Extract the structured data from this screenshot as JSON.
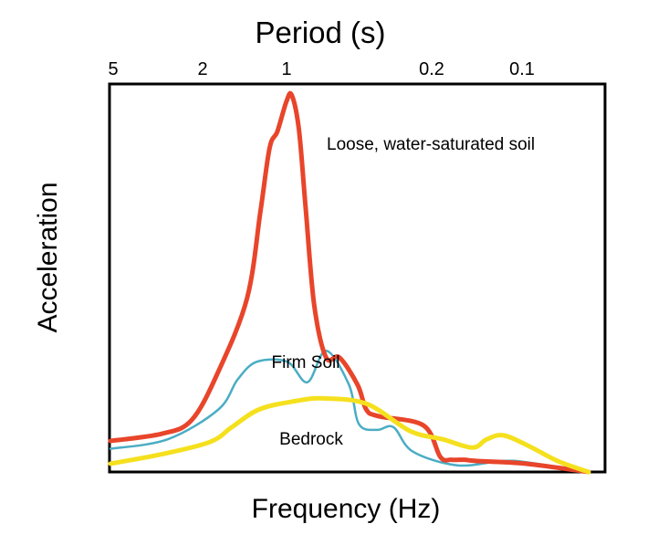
{
  "chart_data": {
    "type": "line",
    "title": "",
    "xlabel": "Frequency (Hz)",
    "ylabel": "Acceleration",
    "top_axis": {
      "label": "Period (s)",
      "ticks": [
        "5",
        "2",
        "1",
        "0.2",
        "0.1"
      ]
    },
    "grid": false,
    "series": [
      {
        "name": "Loose, water-saturated soil",
        "color": "#e8452b",
        "points": [
          [
            0.0,
            0.079
          ],
          [
            0.107,
            0.097
          ],
          [
            0.17,
            0.132
          ],
          [
            0.226,
            0.256
          ],
          [
            0.286,
            0.443
          ],
          [
            0.314,
            0.664
          ],
          [
            0.333,
            0.824
          ],
          [
            0.349,
            0.865
          ],
          [
            0.368,
            0.941
          ],
          [
            0.379,
            0.958
          ],
          [
            0.394,
            0.872
          ],
          [
            0.408,
            0.675
          ],
          [
            0.426,
            0.426
          ],
          [
            0.451,
            0.291
          ],
          [
            0.479,
            0.291
          ],
          [
            0.517,
            0.221
          ],
          [
            0.535,
            0.159
          ],
          [
            0.56,
            0.142
          ],
          [
            0.655,
            0.118
          ],
          [
            0.69,
            0.038
          ],
          [
            0.713,
            0.031
          ],
          [
            0.741,
            0.031
          ],
          [
            0.764,
            0.028
          ],
          [
            0.868,
            0.021
          ],
          [
            1.0,
            0.0
          ]
        ]
      },
      {
        "name": "Firm Soil",
        "color": "#4aadc4",
        "points": [
          [
            0.0,
            0.059
          ],
          [
            0.12,
            0.083
          ],
          [
            0.226,
            0.159
          ],
          [
            0.266,
            0.235
          ],
          [
            0.306,
            0.28
          ],
          [
            0.37,
            0.28
          ],
          [
            0.412,
            0.228
          ],
          [
            0.451,
            0.308
          ],
          [
            0.499,
            0.221
          ],
          [
            0.52,
            0.121
          ],
          [
            0.558,
            0.107
          ],
          [
            0.592,
            0.114
          ],
          [
            0.632,
            0.052
          ],
          [
            0.725,
            0.017
          ],
          [
            0.82,
            0.028
          ],
          [
            0.875,
            0.024
          ],
          [
            1.0,
            0.0
          ]
        ]
      },
      {
        "name": "Bedrock",
        "color": "#f5e01e",
        "points": [
          [
            0.0,
            0.021
          ],
          [
            0.107,
            0.045
          ],
          [
            0.208,
            0.076
          ],
          [
            0.254,
            0.114
          ],
          [
            0.311,
            0.159
          ],
          [
            0.386,
            0.18
          ],
          [
            0.446,
            0.187
          ],
          [
            0.536,
            0.173
          ],
          [
            0.627,
            0.104
          ],
          [
            0.695,
            0.083
          ],
          [
            0.757,
            0.062
          ],
          [
            0.787,
            0.083
          ],
          [
            0.822,
            0.093
          ],
          [
            0.875,
            0.066
          ],
          [
            0.935,
            0.028
          ],
          [
            1.0,
            0.0
          ]
        ]
      }
    ]
  }
}
